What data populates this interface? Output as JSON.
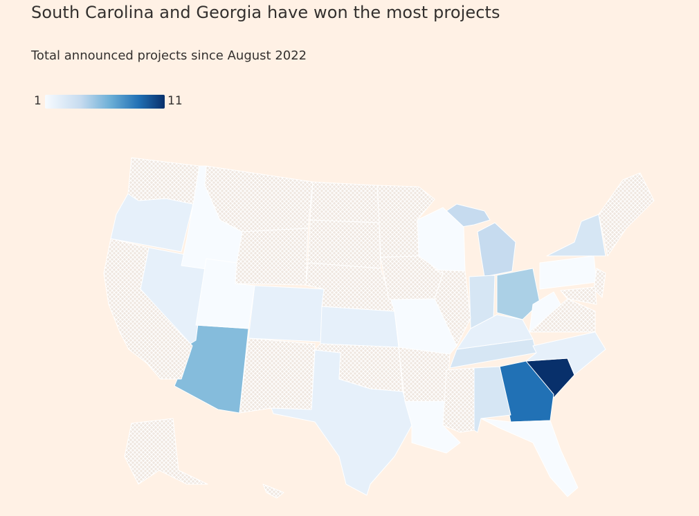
{
  "title": "South Carolina and Georgia have won the most projects",
  "subtitle": "Total announced projects since August 2022",
  "legend": {
    "min_label": "1",
    "max_label": "11",
    "min_value": 1,
    "max_value": 11,
    "color_low": "#f7fbff",
    "color_mid": "#6baed6",
    "color_high": "#08306b"
  },
  "colors": {
    "background": "#fff1e5",
    "no_data": "#efe8e2",
    "border": "#ffffff"
  },
  "states": [
    {
      "code": "SC",
      "projects": 11
    },
    {
      "code": "GA",
      "projects": 9
    },
    {
      "code": "AZ",
      "projects": 6
    },
    {
      "code": "OH",
      "projects": 5
    },
    {
      "code": "MI",
      "projects": 4
    },
    {
      "code": "NY",
      "projects": 3
    },
    {
      "code": "AL",
      "projects": 3
    },
    {
      "code": "IN",
      "projects": 3
    },
    {
      "code": "TN",
      "projects": 3
    },
    {
      "code": "KY",
      "projects": 2
    },
    {
      "code": "NV",
      "projects": 2
    },
    {
      "code": "TX",
      "projects": 2
    },
    {
      "code": "OR",
      "projects": 2
    },
    {
      "code": "CO",
      "projects": 2
    },
    {
      "code": "KS",
      "projects": 2
    },
    {
      "code": "NC",
      "projects": 2
    },
    {
      "code": "ID",
      "projects": 1
    },
    {
      "code": "UT",
      "projects": 1
    },
    {
      "code": "WI",
      "projects": 1
    },
    {
      "code": "MO",
      "projects": 1
    },
    {
      "code": "LA",
      "projects": 1
    },
    {
      "code": "FL",
      "projects": 1
    },
    {
      "code": "PA",
      "projects": 1
    },
    {
      "code": "WV",
      "projects": 1
    },
    {
      "code": "WA",
      "projects": null
    },
    {
      "code": "CA",
      "projects": null
    },
    {
      "code": "MT",
      "projects": null
    },
    {
      "code": "WY",
      "projects": null
    },
    {
      "code": "NM",
      "projects": null
    },
    {
      "code": "ND",
      "projects": null
    },
    {
      "code": "SD",
      "projects": null
    },
    {
      "code": "NE",
      "projects": null
    },
    {
      "code": "OK",
      "projects": null
    },
    {
      "code": "MN",
      "projects": null
    },
    {
      "code": "IA",
      "projects": null
    },
    {
      "code": "AR",
      "projects": null
    },
    {
      "code": "MS",
      "projects": null
    },
    {
      "code": "IL",
      "projects": null
    },
    {
      "code": "VA",
      "projects": null
    },
    {
      "code": "NJ",
      "projects": null
    },
    {
      "code": "DE",
      "projects": null
    },
    {
      "code": "MD",
      "projects": null
    },
    {
      "code": "NE-US",
      "projects": null
    },
    {
      "code": "AK",
      "projects": null
    },
    {
      "code": "HI",
      "projects": null
    }
  ]
}
